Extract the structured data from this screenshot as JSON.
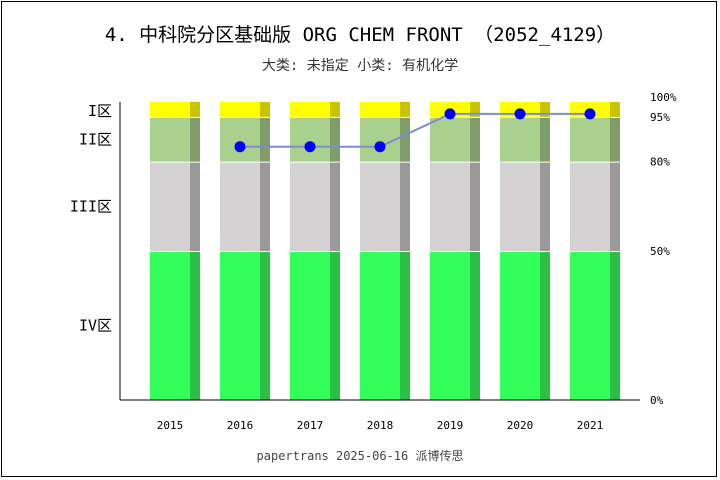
{
  "header": {
    "title": "4. 中科院分区基础版 ORG CHEM FRONT （2052_4129）",
    "subtitle": "大类: 未指定 小类: 有机化学"
  },
  "footer": {
    "text": "papertrans 2025-06-16 派博传思"
  },
  "chart_data": {
    "type": "bar",
    "categories": [
      "2015",
      "2016",
      "2017",
      "2018",
      "2019",
      "2020",
      "2021"
    ],
    "zones": [
      {
        "name": "IV区",
        "from": 0,
        "to": 50,
        "color": "#33ff5a",
        "shade": "#2bbf45"
      },
      {
        "name": "III区",
        "from": 50,
        "to": 80,
        "color": "#d3d1d1",
        "shade": "#9a9898"
      },
      {
        "name": "II区",
        "from": 80,
        "to": 95,
        "color": "#aad08e",
        "shade": "#7f9c6a"
      },
      {
        "name": "I区",
        "from": 95,
        "to": 100,
        "color": "#ffff00",
        "shade": "#c8c400"
      }
    ],
    "ticks": [
      "100%",
      "95%",
      "80%",
      "50%",
      "0%"
    ],
    "tick_values": [
      100,
      95,
      80,
      50,
      0
    ],
    "series": [
      {
        "values": [
          null,
          85,
          85,
          85,
          96,
          96,
          96
        ]
      }
    ],
    "line_color": "#7a8fd0",
    "marker_color": "#0000ff",
    "ylim": [
      0,
      100
    ]
  }
}
